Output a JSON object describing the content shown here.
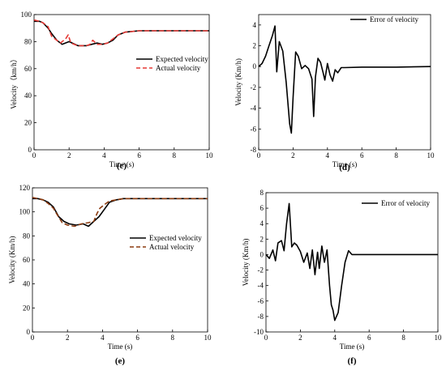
{
  "chart_data": [
    {
      "type": "line",
      "panel_label": "(c)",
      "xlabel": "Time (s)",
      "ylabel": "Velocity（km/h）",
      "xlim": [
        0,
        10
      ],
      "ylim": [
        0,
        100
      ],
      "xticks": [
        "0",
        "2",
        "4",
        "6",
        "8",
        "10"
      ],
      "yticks": [
        "0",
        "20",
        "40",
        "60",
        "80",
        "100"
      ],
      "legend_position": "center-right",
      "series": [
        {
          "name": "Expected velocity",
          "color": "#000000",
          "style": "solid",
          "x": [
            0,
            0.3,
            0.5,
            0.8,
            1.0,
            1.3,
            1.6,
            2.0,
            2.5,
            3.0,
            3.3,
            3.6,
            3.9,
            4.2,
            4.5,
            4.8,
            5.2,
            6.0,
            8.0,
            10.0
          ],
          "y": [
            95,
            95,
            94,
            90,
            86,
            81,
            78,
            80,
            77,
            77,
            78,
            79,
            78,
            79,
            81,
            85,
            87,
            88,
            88,
            88
          ]
        },
        {
          "name": "Actual velocity",
          "color": "#e53935",
          "style": "dashed",
          "x": [
            0,
            0.3,
            0.5,
            0.8,
            1.0,
            1.2,
            1.5,
            1.8,
            1.95,
            2.1,
            2.5,
            3.0,
            3.2,
            3.35,
            3.6,
            3.9,
            4.2,
            4.5,
            4.8,
            5.2,
            6.0,
            8.0,
            10.0
          ],
          "y": [
            96,
            95,
            94,
            91,
            84,
            82,
            79,
            82,
            85,
            79,
            77,
            77,
            78,
            81,
            78,
            78,
            79,
            82,
            85,
            87,
            88,
            88,
            88
          ]
        }
      ]
    },
    {
      "type": "line",
      "panel_label": "(d)",
      "xlabel": "Time (s)",
      "ylabel": "Velocity (Km/h)",
      "xlim": [
        0,
        10
      ],
      "ylim": [
        -8,
        5
      ],
      "xticks": [
        "0",
        "2",
        "4",
        "6",
        "8",
        "10"
      ],
      "yticks": [
        "-8",
        "-6",
        "-4",
        "-2",
        "0",
        "2",
        "4"
      ],
      "legend_position": "top-right",
      "series": [
        {
          "name": "Error of velocity",
          "color": "#000000",
          "style": "solid",
          "x": [
            0,
            0.2,
            0.4,
            0.6,
            0.8,
            0.95,
            1.05,
            1.2,
            1.4,
            1.6,
            1.8,
            1.9,
            2.0,
            2.15,
            2.3,
            2.5,
            2.7,
            2.9,
            3.1,
            3.2,
            3.3,
            3.45,
            3.6,
            3.75,
            3.85,
            4.0,
            4.15,
            4.3,
            4.45,
            4.6,
            4.8,
            5.0,
            6.0,
            8.0,
            10.0
          ],
          "y": [
            0,
            0.3,
            1.0,
            2.0,
            3.0,
            3.9,
            -0.5,
            2.4,
            1.5,
            -1.5,
            -5.5,
            -6.4,
            -3.0,
            1.4,
            1.0,
            -0.2,
            0.1,
            -0.2,
            -1.2,
            -4.8,
            -1.0,
            0.8,
            0.4,
            -0.6,
            -1.3,
            0.3,
            -0.8,
            -1.4,
            -0.3,
            -0.6,
            -0.1,
            -0.1,
            -0.05,
            -0.05,
            0
          ]
        }
      ]
    },
    {
      "type": "line",
      "panel_label": "(e)",
      "xlabel": "Time (s)",
      "ylabel": "Velocity (Km/h)",
      "xlim": [
        0,
        10
      ],
      "ylim": [
        0,
        120
      ],
      "xticks": [
        "0",
        "2",
        "4",
        "6",
        "8",
        "10"
      ],
      "yticks": [
        "0",
        "20",
        "40",
        "60",
        "80",
        "100",
        "120"
      ],
      "legend_position": "center-right",
      "series": [
        {
          "name": "Expected velocity",
          "color": "#000000",
          "style": "solid",
          "x": [
            0,
            0.3,
            0.6,
            0.9,
            1.2,
            1.5,
            1.8,
            2.1,
            2.5,
            2.9,
            3.2,
            3.5,
            3.8,
            4.1,
            4.4,
            4.8,
            5.2,
            6.0,
            8.0,
            10.0
          ],
          "y": [
            111,
            111,
            110,
            108,
            104,
            96,
            92,
            90,
            89,
            90,
            88,
            92,
            96,
            102,
            108,
            110,
            111,
            111,
            111,
            111
          ]
        },
        {
          "name": "Actual velocity",
          "color": "#8b3a0e",
          "style": "dashed",
          "x": [
            0,
            0.3,
            0.6,
            0.9,
            1.2,
            1.4,
            1.7,
            2.0,
            2.4,
            2.8,
            3.2,
            3.5,
            3.7,
            3.85,
            4.1,
            4.4,
            4.8,
            5.2,
            6.0,
            8.0,
            10.0
          ],
          "y": [
            112,
            111,
            110,
            107,
            103,
            98,
            91,
            89,
            88,
            90,
            91,
            92,
            99,
            103,
            106,
            109,
            110,
            111,
            111,
            111,
            111
          ]
        }
      ]
    },
    {
      "type": "line",
      "panel_label": "(f)",
      "xlabel": "Time (s)",
      "ylabel": "Velocity (Km/h)",
      "xlim": [
        0,
        10
      ],
      "ylim": [
        -10,
        8
      ],
      "xticks": [
        "0",
        "2",
        "4",
        "6",
        "8",
        "10"
      ],
      "yticks": [
        "-10",
        "-8",
        "-6",
        "-4",
        "-2",
        "0",
        "2",
        "4",
        "6",
        "8"
      ],
      "legend_position": "top-right",
      "series": [
        {
          "name": "Error of velocity",
          "color": "#000000",
          "style": "solid",
          "x": [
            0,
            0.2,
            0.4,
            0.55,
            0.7,
            0.9,
            1.05,
            1.2,
            1.35,
            1.5,
            1.65,
            1.8,
            2.0,
            2.2,
            2.4,
            2.55,
            2.7,
            2.85,
            3.0,
            3.1,
            3.25,
            3.4,
            3.55,
            3.7,
            3.8,
            3.9,
            4.0,
            4.2,
            4.4,
            4.6,
            4.8,
            5.0,
            6.0,
            8.0,
            10.0
          ],
          "y": [
            0,
            -0.5,
            0.6,
            -0.8,
            1.5,
            1.8,
            0.5,
            4.0,
            6.6,
            1.0,
            1.5,
            1.2,
            0.4,
            -1.0,
            0.2,
            -1.8,
            0.6,
            -2.6,
            0.3,
            -1.8,
            1.1,
            -1.0,
            0.6,
            -4.0,
            -6.5,
            -7.2,
            -8.5,
            -7.5,
            -4.0,
            -1.0,
            0.5,
            0.0,
            0.0,
            0.0,
            0.0
          ]
        }
      ]
    }
  ]
}
